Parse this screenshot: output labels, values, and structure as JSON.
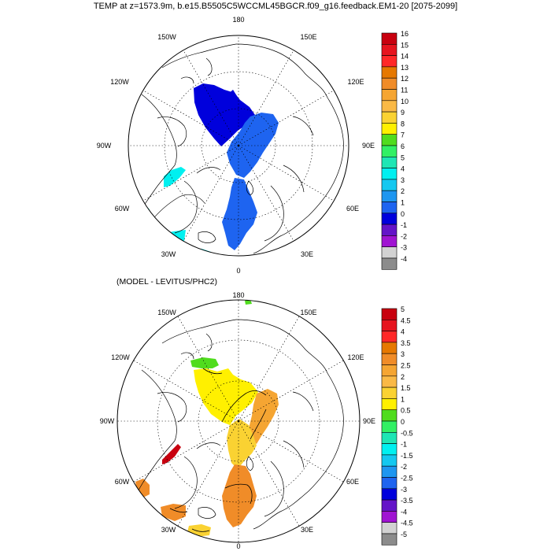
{
  "title": "TEMP at z=1573.9m, b.e15.B5505C5WCCML45BGCR.f09_g16.feedback.EM1-20 [2075-2099]",
  "subtitle": "(MODEL - LEVITUS/PHC2)",
  "map_labels": {
    "top": "180",
    "bottom": "0",
    "left": "90W",
    "right": "90E",
    "upper_left": "150W",
    "upper_right": "150E",
    "mid_upper_left": "120W",
    "mid_upper_right": "120E",
    "mid_lower_left": "60W",
    "mid_lower_right": "60E",
    "lower_left": "30W",
    "lower_right": "30E"
  },
  "colorbar_top": {
    "labels": [
      "16",
      "15",
      "14",
      "13",
      "12",
      "11",
      "10",
      "9",
      "8",
      "7",
      "6",
      "5",
      "4",
      "3",
      "2",
      "1",
      "0",
      "-1",
      "-2",
      "-3",
      "-4"
    ],
    "colors": [
      "#c8000f",
      "#e6141e",
      "#ff2828",
      "#e67800",
      "#f08c28",
      "#f5a532",
      "#fab946",
      "#fad232",
      "#fff000",
      "#50dc1e",
      "#32f064",
      "#1ee6b4",
      "#00f0f0",
      "#14c8f0",
      "#1e96f0",
      "#1e64f0",
      "#0000dc",
      "#6414c8",
      "#a014d2",
      "#d2d2d2",
      "#8c8c8c"
    ]
  },
  "colorbar_bottom": {
    "labels": [
      "5",
      "4.5",
      "4",
      "3.5",
      "3",
      "2.5",
      "2",
      "1.5",
      "1",
      "0.5",
      "0",
      "-0.5",
      "-1",
      "-1.5",
      "-2",
      "-2.5",
      "-3",
      "-3.5",
      "-4",
      "-4.5",
      "-5"
    ],
    "colors": [
      "#c8000f",
      "#e6141e",
      "#ff2828",
      "#e67800",
      "#f08c28",
      "#f5a532",
      "#fab946",
      "#fad232",
      "#fff000",
      "#50dc1e",
      "#32f064",
      "#1ee6b4",
      "#00f0f0",
      "#14c8f0",
      "#1e96f0",
      "#1e64f0",
      "#0000dc",
      "#6414c8",
      "#a014d2",
      "#d2d2d2",
      "#8c8c8c"
    ]
  }
}
